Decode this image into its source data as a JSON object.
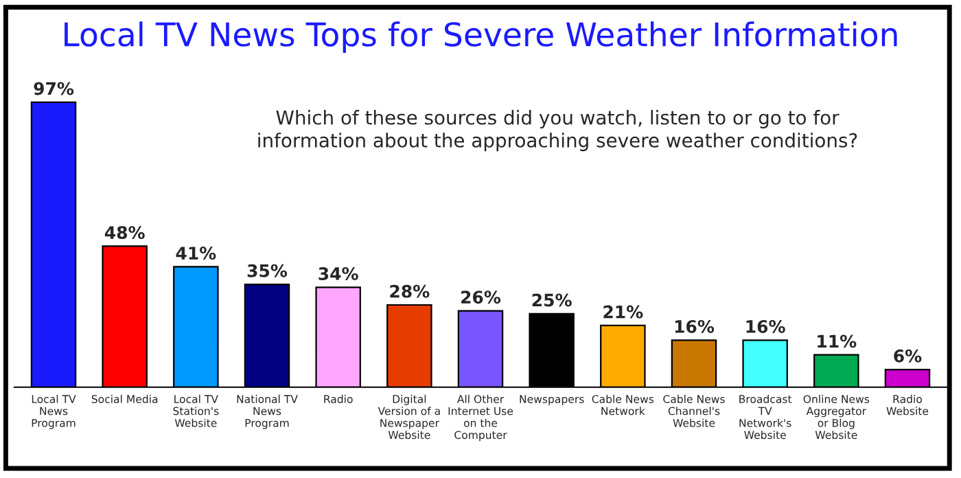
{
  "chart_data": {
    "type": "bar",
    "title": "Local TV News Tops for Severe Weather Information",
    "subtitle": "Which of these sources did you watch, listen to or go to for\ninformation about the approaching severe weather conditions?",
    "categories": [
      "Local TV\nNews\nProgram",
      "Social Media",
      "Local TV\nStation's\nWebsite",
      "National TV\nNews\nProgram",
      "Radio",
      "Digital\nVersion of a\nNewspaper\nWebsite",
      "All Other\nInternet Use\non the\nComputer",
      "Newspapers",
      "Cable News\nNetwork",
      "Cable News\nChannel's\nWebsite",
      "Broadcast\nTV\nNetwork's\nWebsite",
      "Online News\nAggregator\nor Blog\nWebsite",
      "Radio\nWebsite"
    ],
    "values": [
      97,
      48,
      41,
      35,
      34,
      28,
      26,
      25,
      21,
      16,
      16,
      11,
      6
    ],
    "value_labels": [
      "97%",
      "48%",
      "41%",
      "35%",
      "34%",
      "28%",
      "26%",
      "25%",
      "21%",
      "16%",
      "16%",
      "11%",
      "6%"
    ],
    "colors": [
      "#1a1aff",
      "#ff0000",
      "#0099ff",
      "#000080",
      "#ffa6ff",
      "#e63c00",
      "#7755ff",
      "#000000",
      "#ffaa00",
      "#c87800",
      "#44ffff",
      "#00aa55",
      "#cc00cc"
    ],
    "grid": false,
    "legend": false
  }
}
